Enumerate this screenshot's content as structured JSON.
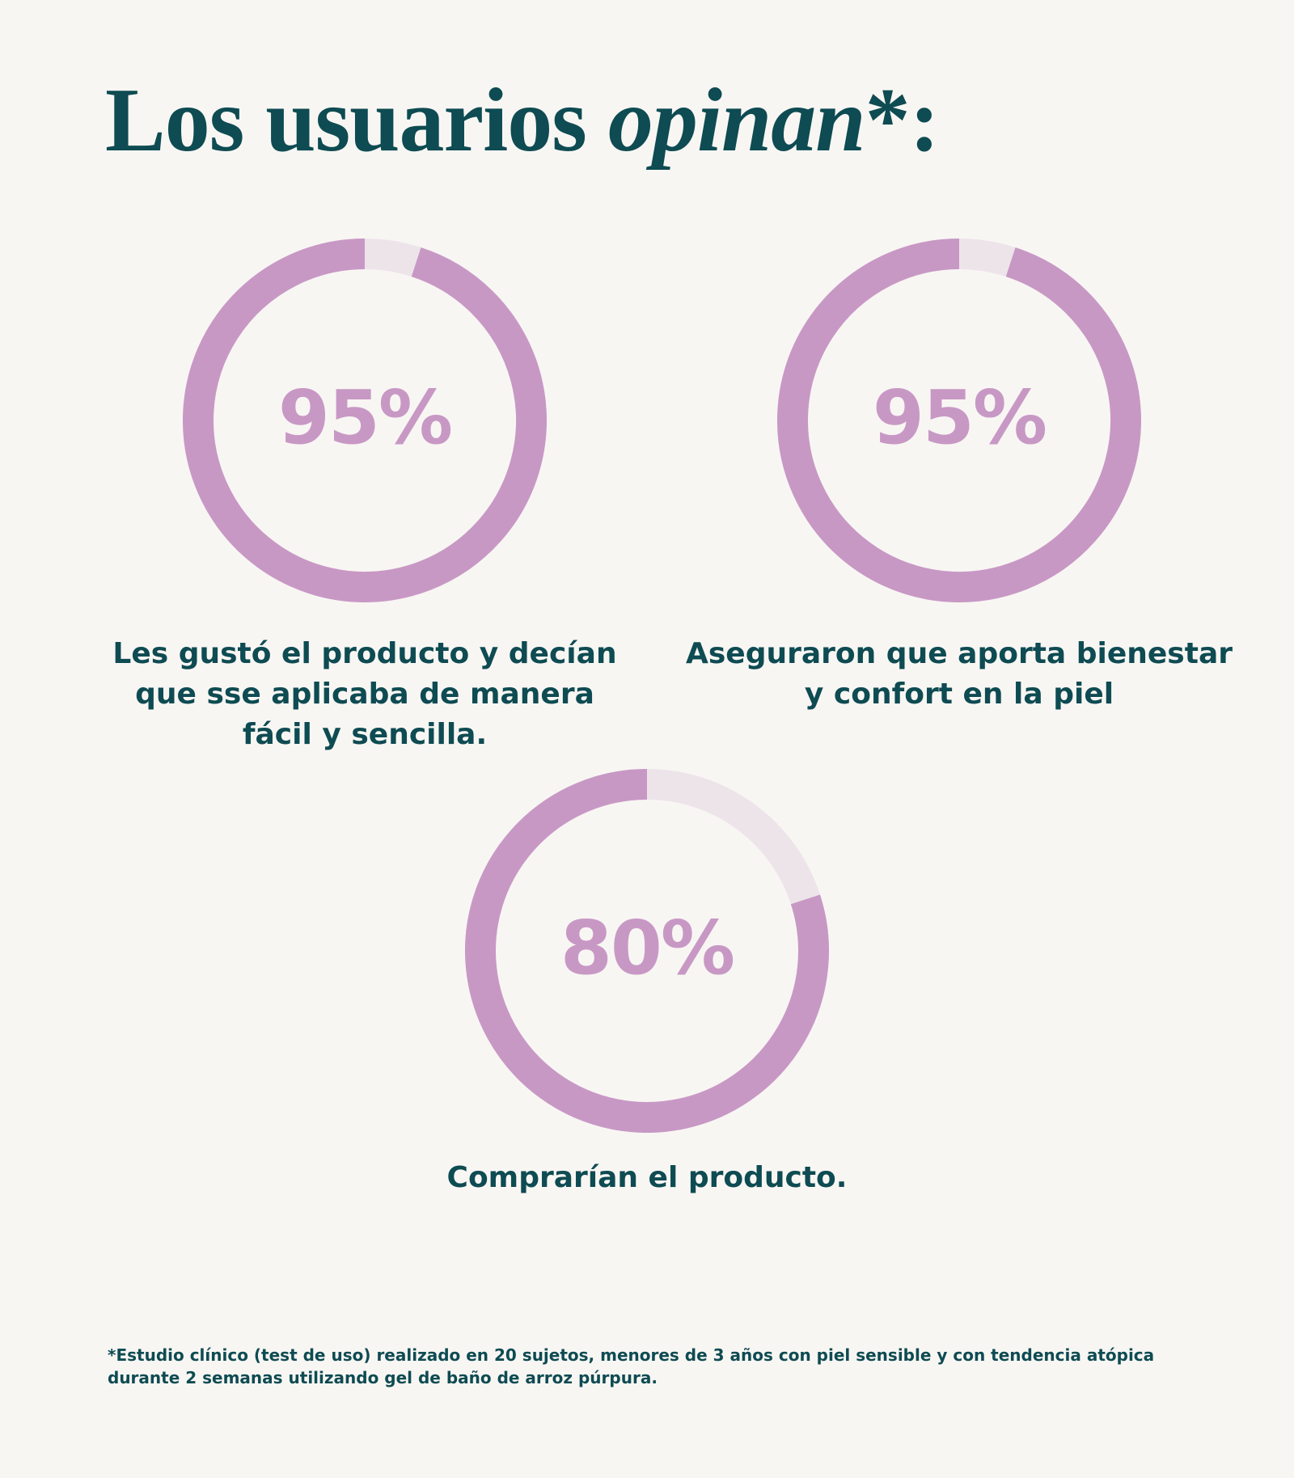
{
  "title": {
    "main": "Los usuarios ",
    "emphasis": "opinan",
    "suffix": "*:"
  },
  "colors": {
    "ring_fill": "#c898c5",
    "ring_track": "#ede4ea",
    "text_primary": "#0e4b52",
    "background": "#f8f6f3"
  },
  "chart_data": [
    {
      "type": "donut",
      "value": 95,
      "label": "95%",
      "caption": "Les gustó el producto y decían\nque sse aplicaba de manera\nfácil y sencilla."
    },
    {
      "type": "donut",
      "value": 95,
      "label": "95%",
      "caption": "Aseguraron que aporta bienestar\ny confort en la piel"
    },
    {
      "type": "donut",
      "value": 80,
      "label": "80%",
      "caption": "Comprarían el producto."
    }
  ],
  "footnote": "*Estudio clínico (test de uso) realizado en 20 sujetos, menores de 3 años con piel sensible y con tendencia atópica\ndurante 2 semanas utilizando gel de baño de arroz púrpura."
}
